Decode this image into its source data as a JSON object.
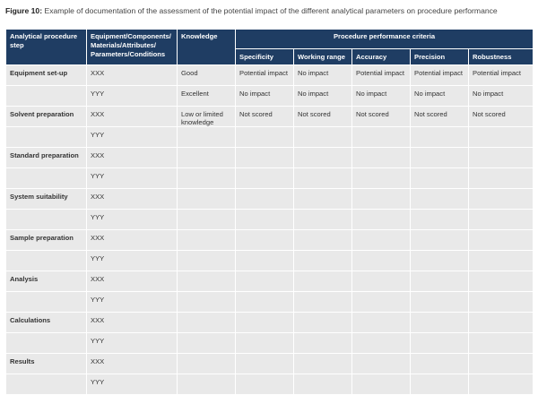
{
  "figure": {
    "label": "Figure 10:",
    "caption": "Example of documentation of the assessment of the potential impact of the different analytical parameters on procedure performance"
  },
  "table": {
    "headers": {
      "step": "Analytical procedure step",
      "components": "Equipment/Components/ Materials/Attributes/ Parameters/Conditions",
      "knowledge": "Knowledge",
      "criteria_group": "Procedure performance criteria",
      "criteria": [
        "Specificity",
        "Working range",
        "Accuracy",
        "Precision",
        "Robustness"
      ]
    },
    "groups": [
      {
        "step": "Equipment set-up",
        "rows": [
          {
            "component": "XXX",
            "knowledge": "Good",
            "values": [
              "Potential impact",
              "No impact",
              "Potential impact",
              "Potential impact",
              "Potential impact"
            ]
          },
          {
            "component": "YYY",
            "knowledge": "Excellent",
            "values": [
              "No impact",
              "No impact",
              "No impact",
              "No impact",
              "No impact"
            ]
          }
        ]
      },
      {
        "step": "Solvent preparation",
        "rows": [
          {
            "component": "XXX",
            "knowledge": "Low or limited knowledge",
            "values": [
              "Not scored",
              "Not scored",
              "Not scored",
              "Not scored",
              "Not scored"
            ]
          },
          {
            "component": "YYY",
            "knowledge": "",
            "values": [
              "",
              "",
              "",
              "",
              ""
            ]
          }
        ]
      },
      {
        "step": "Standard preparation",
        "rows": [
          {
            "component": "XXX",
            "knowledge": "",
            "values": [
              "",
              "",
              "",
              "",
              ""
            ]
          },
          {
            "component": "YYY",
            "knowledge": "",
            "values": [
              "",
              "",
              "",
              "",
              ""
            ]
          }
        ]
      },
      {
        "step": "System suitability",
        "rows": [
          {
            "component": "XXX",
            "knowledge": "",
            "values": [
              "",
              "",
              "",
              "",
              ""
            ]
          },
          {
            "component": "YYY",
            "knowledge": "",
            "values": [
              "",
              "",
              "",
              "",
              ""
            ]
          }
        ]
      },
      {
        "step": "Sample preparation",
        "rows": [
          {
            "component": "XXX",
            "knowledge": "",
            "values": [
              "",
              "",
              "",
              "",
              ""
            ]
          },
          {
            "component": "YYY",
            "knowledge": "",
            "values": [
              "",
              "",
              "",
              "",
              ""
            ]
          }
        ]
      },
      {
        "step": "Analysis",
        "rows": [
          {
            "component": "XXX",
            "knowledge": "",
            "values": [
              "",
              "",
              "",
              "",
              ""
            ]
          },
          {
            "component": "YYY",
            "knowledge": "",
            "values": [
              "",
              "",
              "",
              "",
              ""
            ]
          }
        ]
      },
      {
        "step": "Calculations",
        "rows": [
          {
            "component": "XXX",
            "knowledge": "",
            "values": [
              "",
              "",
              "",
              "",
              ""
            ]
          },
          {
            "component": "YYY",
            "knowledge": "",
            "values": [
              "",
              "",
              "",
              "",
              ""
            ]
          }
        ]
      },
      {
        "step": "Results",
        "rows": [
          {
            "component": "XXX",
            "knowledge": "",
            "values": [
              "",
              "",
              "",
              "",
              ""
            ]
          },
          {
            "component": "YYY",
            "knowledge": "",
            "values": [
              "",
              "",
              "",
              "",
              ""
            ]
          }
        ]
      }
    ],
    "colors": {
      "header_bg": "#1f3d63",
      "cell_bg": "#e9e9e9",
      "grid": "#ffffff"
    }
  }
}
